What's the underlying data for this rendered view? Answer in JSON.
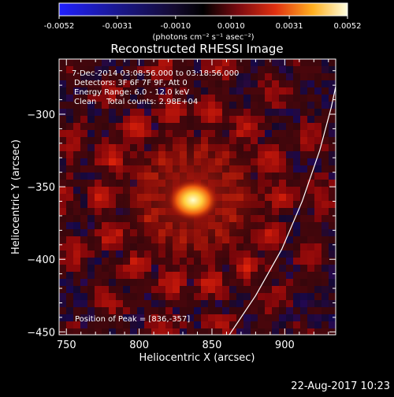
{
  "chart_data": {
    "type": "heatmap",
    "title": "Reconstructed RHESSI Image",
    "colorbar": {
      "ticks": [
        "-0.0052",
        "-0.0031",
        "-0.0010",
        "0.0010",
        "0.0031",
        "0.0052"
      ],
      "unit_label": "(photons cm⁻² s⁻¹ asec⁻²)",
      "range": [
        -0.0052,
        0.0052
      ]
    },
    "xlabel": "Heliocentric X (arcsec)",
    "ylabel": "Heliocentric Y (arcsec)",
    "xlim": [
      745,
      935
    ],
    "ylim": [
      -452,
      -262
    ],
    "xticks": [
      750,
      800,
      850,
      900
    ],
    "yticks": [
      -450,
      -400,
      -350,
      -300
    ],
    "annotations": [
      " 7-Dec-2014 03:08:56.000 to 03:18:56.000",
      "Detectors: 3F 6F 7F 9F, Att 0",
      "Energy Range: 6.0 - 12.0 keV",
      "Clean    Total counts: 2.98E+04"
    ],
    "peak_label": "Position of Peak = [836,-357]",
    "peak": {
      "x": 836,
      "y": -357
    },
    "limb_curve": [
      [
        862,
        -452
      ],
      [
        880,
        -425
      ],
      [
        898,
        -393
      ],
      [
        912,
        -360
      ],
      [
        924,
        -325
      ],
      [
        932,
        -295
      ],
      [
        935,
        -281
      ]
    ],
    "palette": {
      "background": "#000000",
      "axes": "#ffffff",
      "limb": "#ffffff"
    }
  },
  "footer": {
    "timestamp": "22-Aug-2017 10:23"
  }
}
